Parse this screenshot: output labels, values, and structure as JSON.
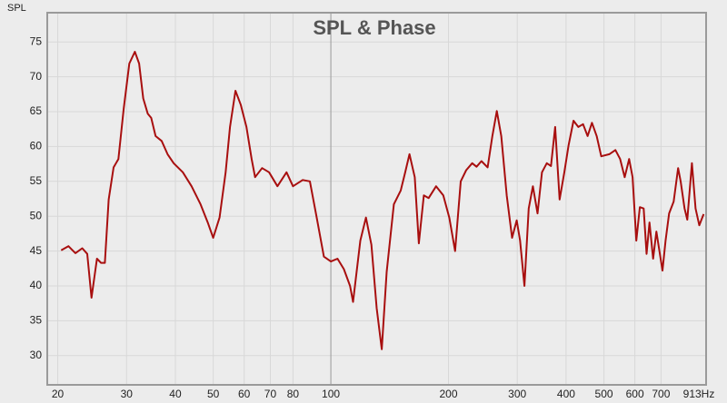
{
  "chart_data": {
    "type": "line",
    "title": "SPL & Phase",
    "y_label": "SPL",
    "x_scale": "log",
    "grid": true,
    "xlim": [
      18.8,
      913
    ],
    "ylim": [
      25.8,
      79.2
    ],
    "xticks": [
      20,
      30,
      40,
      50,
      60,
      70,
      80,
      100,
      200,
      300,
      400,
      500,
      600,
      700,
      {
        "value": 913,
        "label": "913Hz"
      }
    ],
    "yticks": [
      30,
      35,
      40,
      45,
      50,
      55,
      60,
      65,
      70,
      75
    ],
    "x": [
      20.4,
      21.3,
      22.2,
      23.1,
      23.8,
      24.4,
      25.2,
      25.8,
      26.4,
      27.0,
      27.8,
      28.6,
      29.5,
      30.5,
      31.5,
      32.3,
      33.1,
      34,
      34.7,
      35.6,
      36.9,
      38.2,
      39.6,
      41.8,
      44,
      46.4,
      48.4,
      50,
      51.9,
      53.8,
      55.2,
      57,
      58.8,
      60.8,
      62.7,
      64,
      66.7,
      69.5,
      73,
      77,
      80,
      84.7,
      88.4,
      92,
      96,
      100,
      104,
      108,
      112,
      114,
      119,
      123,
      127,
      131,
      135,
      139,
      145,
      151,
      155,
      159,
      164,
      168,
      173,
      178,
      186,
      194,
      201,
      208,
      215,
      222,
      230,
      236,
      243,
      252,
      259,
      266,
      273,
      282,
      291,
      299,
      305,
      313,
      321,
      329,
      338,
      347,
      357,
      366,
      375,
      385,
      396,
      406,
      418,
      430,
      442,
      454,
      466,
      479,
      492,
      516,
      535,
      550,
      565,
      580,
      592,
      605,
      618,
      632,
      643,
      654,
      668,
      681,
      706,
      719,
      734,
      754,
      774,
      786,
      804,
      817,
      840,
      858,
      877,
      900
    ],
    "series": [
      {
        "name": "SPL",
        "color": "#a80f0f",
        "values": [
          45.1,
          45.7,
          44.7,
          45.4,
          44.6,
          38.3,
          43.9,
          43.3,
          43.3,
          52.4,
          57,
          58.2,
          65.4,
          71.9,
          73.6,
          71.9,
          66.9,
          64.7,
          64.1,
          61.5,
          60.8,
          58.9,
          57.6,
          56.3,
          54.3,
          51.7,
          49.1,
          46.9,
          49.8,
          56.3,
          62.8,
          68,
          66,
          62.8,
          58.2,
          55.6,
          56.9,
          56.3,
          54.3,
          56.3,
          54.3,
          55.2,
          55,
          49.8,
          44.2,
          43.5,
          43.9,
          42.4,
          40,
          37.7,
          46.5,
          49.8,
          45.9,
          36.8,
          30.9,
          42,
          51.7,
          53.7,
          56.3,
          58.9,
          55.6,
          46.1,
          53,
          52.6,
          54.3,
          53,
          49.8,
          45,
          55,
          56.6,
          57.6,
          57.1,
          57.9,
          57,
          61.5,
          65.1,
          61.5,
          53,
          46.9,
          49.4,
          46.5,
          40,
          51.1,
          54.3,
          50.4,
          56.3,
          57.6,
          57.2,
          62.8,
          52.4,
          56.3,
          60.2,
          63.7,
          62.8,
          63.2,
          61.5,
          63.4,
          61.5,
          58.6,
          58.9,
          59.5,
          58.2,
          55.6,
          58.2,
          55.6,
          46.5,
          51.3,
          51.1,
          44.6,
          49.1,
          43.9,
          47.8,
          42.2,
          46.5,
          50.4,
          52.1,
          56.9,
          55,
          51.1,
          49.5,
          57.6,
          51.1,
          48.7,
          50.3
        ]
      }
    ]
  }
}
